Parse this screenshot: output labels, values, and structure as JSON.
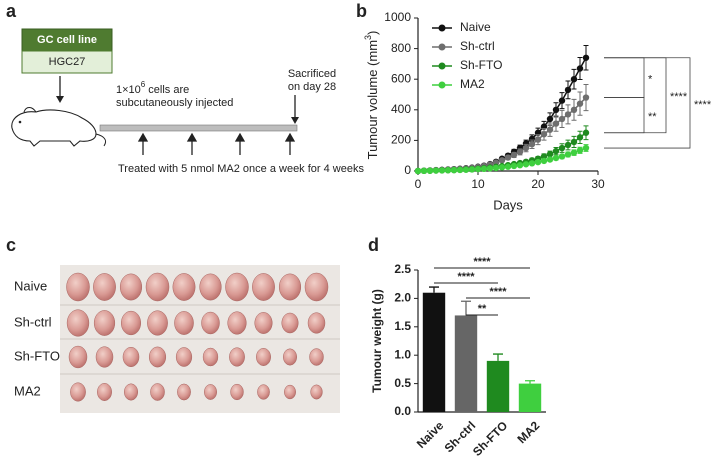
{
  "panel_labels": [
    "a",
    "b",
    "c",
    "d"
  ],
  "schematic": {
    "box_title": "GC cell line",
    "box_cell": "HGC27",
    "injection_base": "1×10",
    "injection_exponent": "6",
    "injection_rest": " cells are",
    "injection_line2": "subcutaneously injected",
    "sacrifice_line1": "Sacrificed",
    "sacrifice_line2": "on day 28",
    "treatment": "Treated with 5 nmol MA2 once a week for 4 weeks"
  },
  "photo": {
    "rows": [
      "Naive",
      "Sh-ctrl",
      "Sh-FTO",
      "MA2"
    ]
  },
  "chart_data": [
    {
      "type": "line",
      "x_label": "Days",
      "y_label_base": "Tumour volume (mm",
      "y_label_exponent": "3",
      "y_label_end": ")",
      "x": [
        0,
        1,
        2,
        3,
        4,
        5,
        6,
        7,
        8,
        9,
        10,
        11,
        12,
        13,
        14,
        15,
        16,
        17,
        18,
        19,
        20,
        21,
        22,
        23,
        24,
        25,
        26,
        27,
        28
      ],
      "xlim": [
        0,
        30
      ],
      "xticks": [
        0,
        10,
        20,
        30
      ],
      "ylim": [
        0,
        1000
      ],
      "yticks": [
        0,
        200,
        400,
        600,
        800,
        1000
      ],
      "series": [
        {
          "name": "Naive",
          "color": "#111111",
          "values": [
            0,
            2,
            4,
            6,
            8,
            10,
            12,
            15,
            18,
            22,
            28,
            35,
            45,
            60,
            80,
            100,
            125,
            150,
            180,
            210,
            250,
            290,
            340,
            400,
            460,
            530,
            600,
            670,
            740
          ],
          "errors": [
            0,
            1,
            1,
            1,
            2,
            2,
            2,
            3,
            3,
            4,
            5,
            6,
            7,
            9,
            11,
            13,
            16,
            19,
            22,
            26,
            30,
            34,
            40,
            46,
            52,
            58,
            64,
            72,
            80
          ]
        },
        {
          "name": "Sh-ctrl",
          "color": "#6e6e6e",
          "values": [
            0,
            2,
            3,
            5,
            7,
            9,
            11,
            14,
            17,
            21,
            26,
            33,
            42,
            55,
            70,
            88,
            105,
            125,
            150,
            175,
            205,
            240,
            270,
            310,
            340,
            370,
            400,
            440,
            480
          ],
          "errors": [
            0,
            1,
            1,
            1,
            2,
            2,
            2,
            3,
            3,
            4,
            5,
            6,
            7,
            9,
            11,
            14,
            17,
            20,
            24,
            28,
            33,
            38,
            44,
            50,
            56,
            62,
            68,
            76,
            85
          ]
        },
        {
          "name": "Sh-FTO",
          "color": "#1f8a1f",
          "values": [
            0,
            1,
            2,
            3,
            4,
            5,
            6,
            8,
            10,
            12,
            15,
            18,
            22,
            27,
            32,
            38,
            45,
            52,
            60,
            70,
            80,
            95,
            110,
            130,
            150,
            170,
            190,
            220,
            250
          ],
          "errors": [
            0,
            1,
            1,
            1,
            1,
            1,
            1,
            2,
            2,
            2,
            3,
            3,
            4,
            5,
            6,
            7,
            8,
            9,
            11,
            13,
            15,
            17,
            20,
            24,
            28,
            32,
            36,
            40,
            45
          ]
        },
        {
          "name": "MA2",
          "color": "#3fcf3f",
          "values": [
            0,
            1,
            2,
            3,
            4,
            5,
            6,
            7,
            8,
            10,
            12,
            14,
            17,
            20,
            24,
            28,
            33,
            38,
            44,
            50,
            58,
            66,
            75,
            85,
            95,
            108,
            120,
            135,
            150
          ],
          "errors": [
            0,
            1,
            1,
            1,
            1,
            1,
            1,
            1,
            2,
            2,
            2,
            3,
            3,
            4,
            4,
            5,
            6,
            7,
            8,
            9,
            10,
            11,
            12,
            13,
            14,
            16,
            18,
            20,
            22
          ]
        }
      ],
      "annotations": [
        "*",
        "**",
        "****",
        "****"
      ]
    },
    {
      "type": "bar",
      "y_label": "Tumour weight (g)",
      "categories": [
        "Naive",
        "Sh-ctrl",
        "Sh-FTO",
        "MA2"
      ],
      "values": [
        2.1,
        1.7,
        0.9,
        0.5
      ],
      "errors": [
        0.1,
        0.25,
        0.12,
        0.05
      ],
      "colors": [
        "#111111",
        "#666666",
        "#1f8a1f",
        "#3fcf3f"
      ],
      "ylim": [
        0,
        2.5
      ],
      "yticks": [
        {
          "value": 0,
          "label": "0.0"
        },
        0.5,
        {
          "value": 1,
          "label": "1.0"
        },
        1.5,
        {
          "value": 2,
          "label": "2.0"
        },
        2.5
      ],
      "annotations": [
        "****",
        "****",
        "****",
        "**"
      ]
    }
  ]
}
